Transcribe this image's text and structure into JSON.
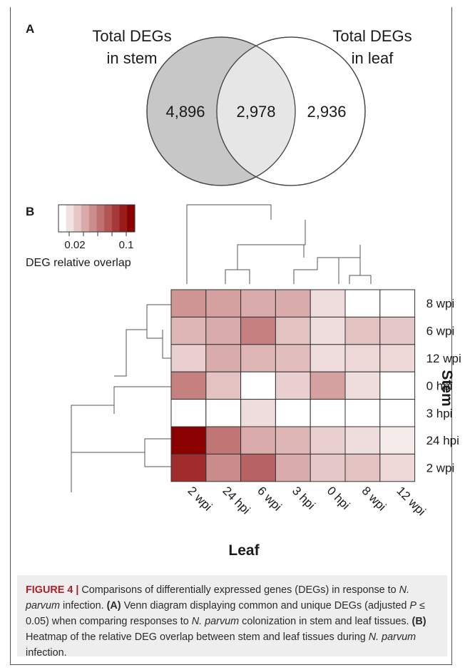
{
  "panel_a": {
    "label": "A",
    "stem_title_lines": [
      "Total DEGs",
      "in stem"
    ],
    "leaf_title_lines": [
      "Total DEGs",
      "in leaf"
    ],
    "stem_only": "4,896",
    "shared": "2,978",
    "leaf_only": "2,936",
    "colors": {
      "stem": "#c7c7c7",
      "overlap": "#e6e6e6",
      "leaf": "#ffffff"
    }
  },
  "panel_b": {
    "label": "B",
    "legend": {
      "ticks": [
        "0.02",
        "0.1"
      ],
      "title": "DEG relative overlap",
      "color_low": "#ffffff",
      "color_high": "#8b0000"
    },
    "x_title": "Leaf",
    "y_title": "Stem"
  },
  "chart_data": {
    "type": "heatmap",
    "xlabel": "Leaf",
    "ylabel": "Stem",
    "colorbar_label": "DEG relative overlap",
    "colorbar_ticks": [
      0.02,
      0.1
    ],
    "colorbar_range": [
      0.0,
      0.12
    ],
    "columns": [
      "2 wpi",
      "24 hpi",
      "6 wpi",
      "3 hpi",
      "0 hpi",
      "8 wpi",
      "12 wpi"
    ],
    "rows": [
      "8 wpi",
      "6 wpi",
      "12 wpi",
      "0 hpi",
      "3 hpi",
      "24 hpi",
      "2 wpi"
    ],
    "values": [
      [
        0.04,
        0.035,
        0.03,
        0.03,
        0.01,
        0.0,
        0.0
      ],
      [
        0.025,
        0.03,
        0.05,
        0.02,
        0.01,
        0.02,
        0.018
      ],
      [
        0.015,
        0.03,
        0.025,
        0.022,
        0.01,
        0.012,
        0.012
      ],
      [
        0.05,
        0.02,
        0.0,
        0.015,
        0.035,
        0.01,
        0.0
      ],
      [
        0.0,
        0.0,
        0.01,
        0.0,
        0.0,
        0.0,
        0.0
      ],
      [
        0.12,
        0.055,
        0.03,
        0.025,
        0.015,
        0.01,
        0.005
      ],
      [
        0.095,
        0.045,
        0.065,
        0.03,
        0.018,
        0.02,
        0.012
      ]
    ]
  },
  "caption": {
    "fig_label": "FIGURE 4 |",
    "text_1": " Comparisons of differentially expressed genes (DEGs) in response to ",
    "species_1": "N. parvum",
    "text_2": " infection. ",
    "ref_a": "(A)",
    "text_3": " Venn diagram displaying common and unique DEGs (adjusted ",
    "p_symbol": "P",
    "text_4": " ≤ 0.05) when comparing responses to ",
    "species_2": "N. parvum",
    "text_5": " colonization in stem and leaf tissues. ",
    "ref_b": "(B)",
    "text_6": " Heatmap of the relative DEG overlap between stem and leaf tissues during ",
    "species_3": "N. parvum",
    "text_7": " infection."
  }
}
